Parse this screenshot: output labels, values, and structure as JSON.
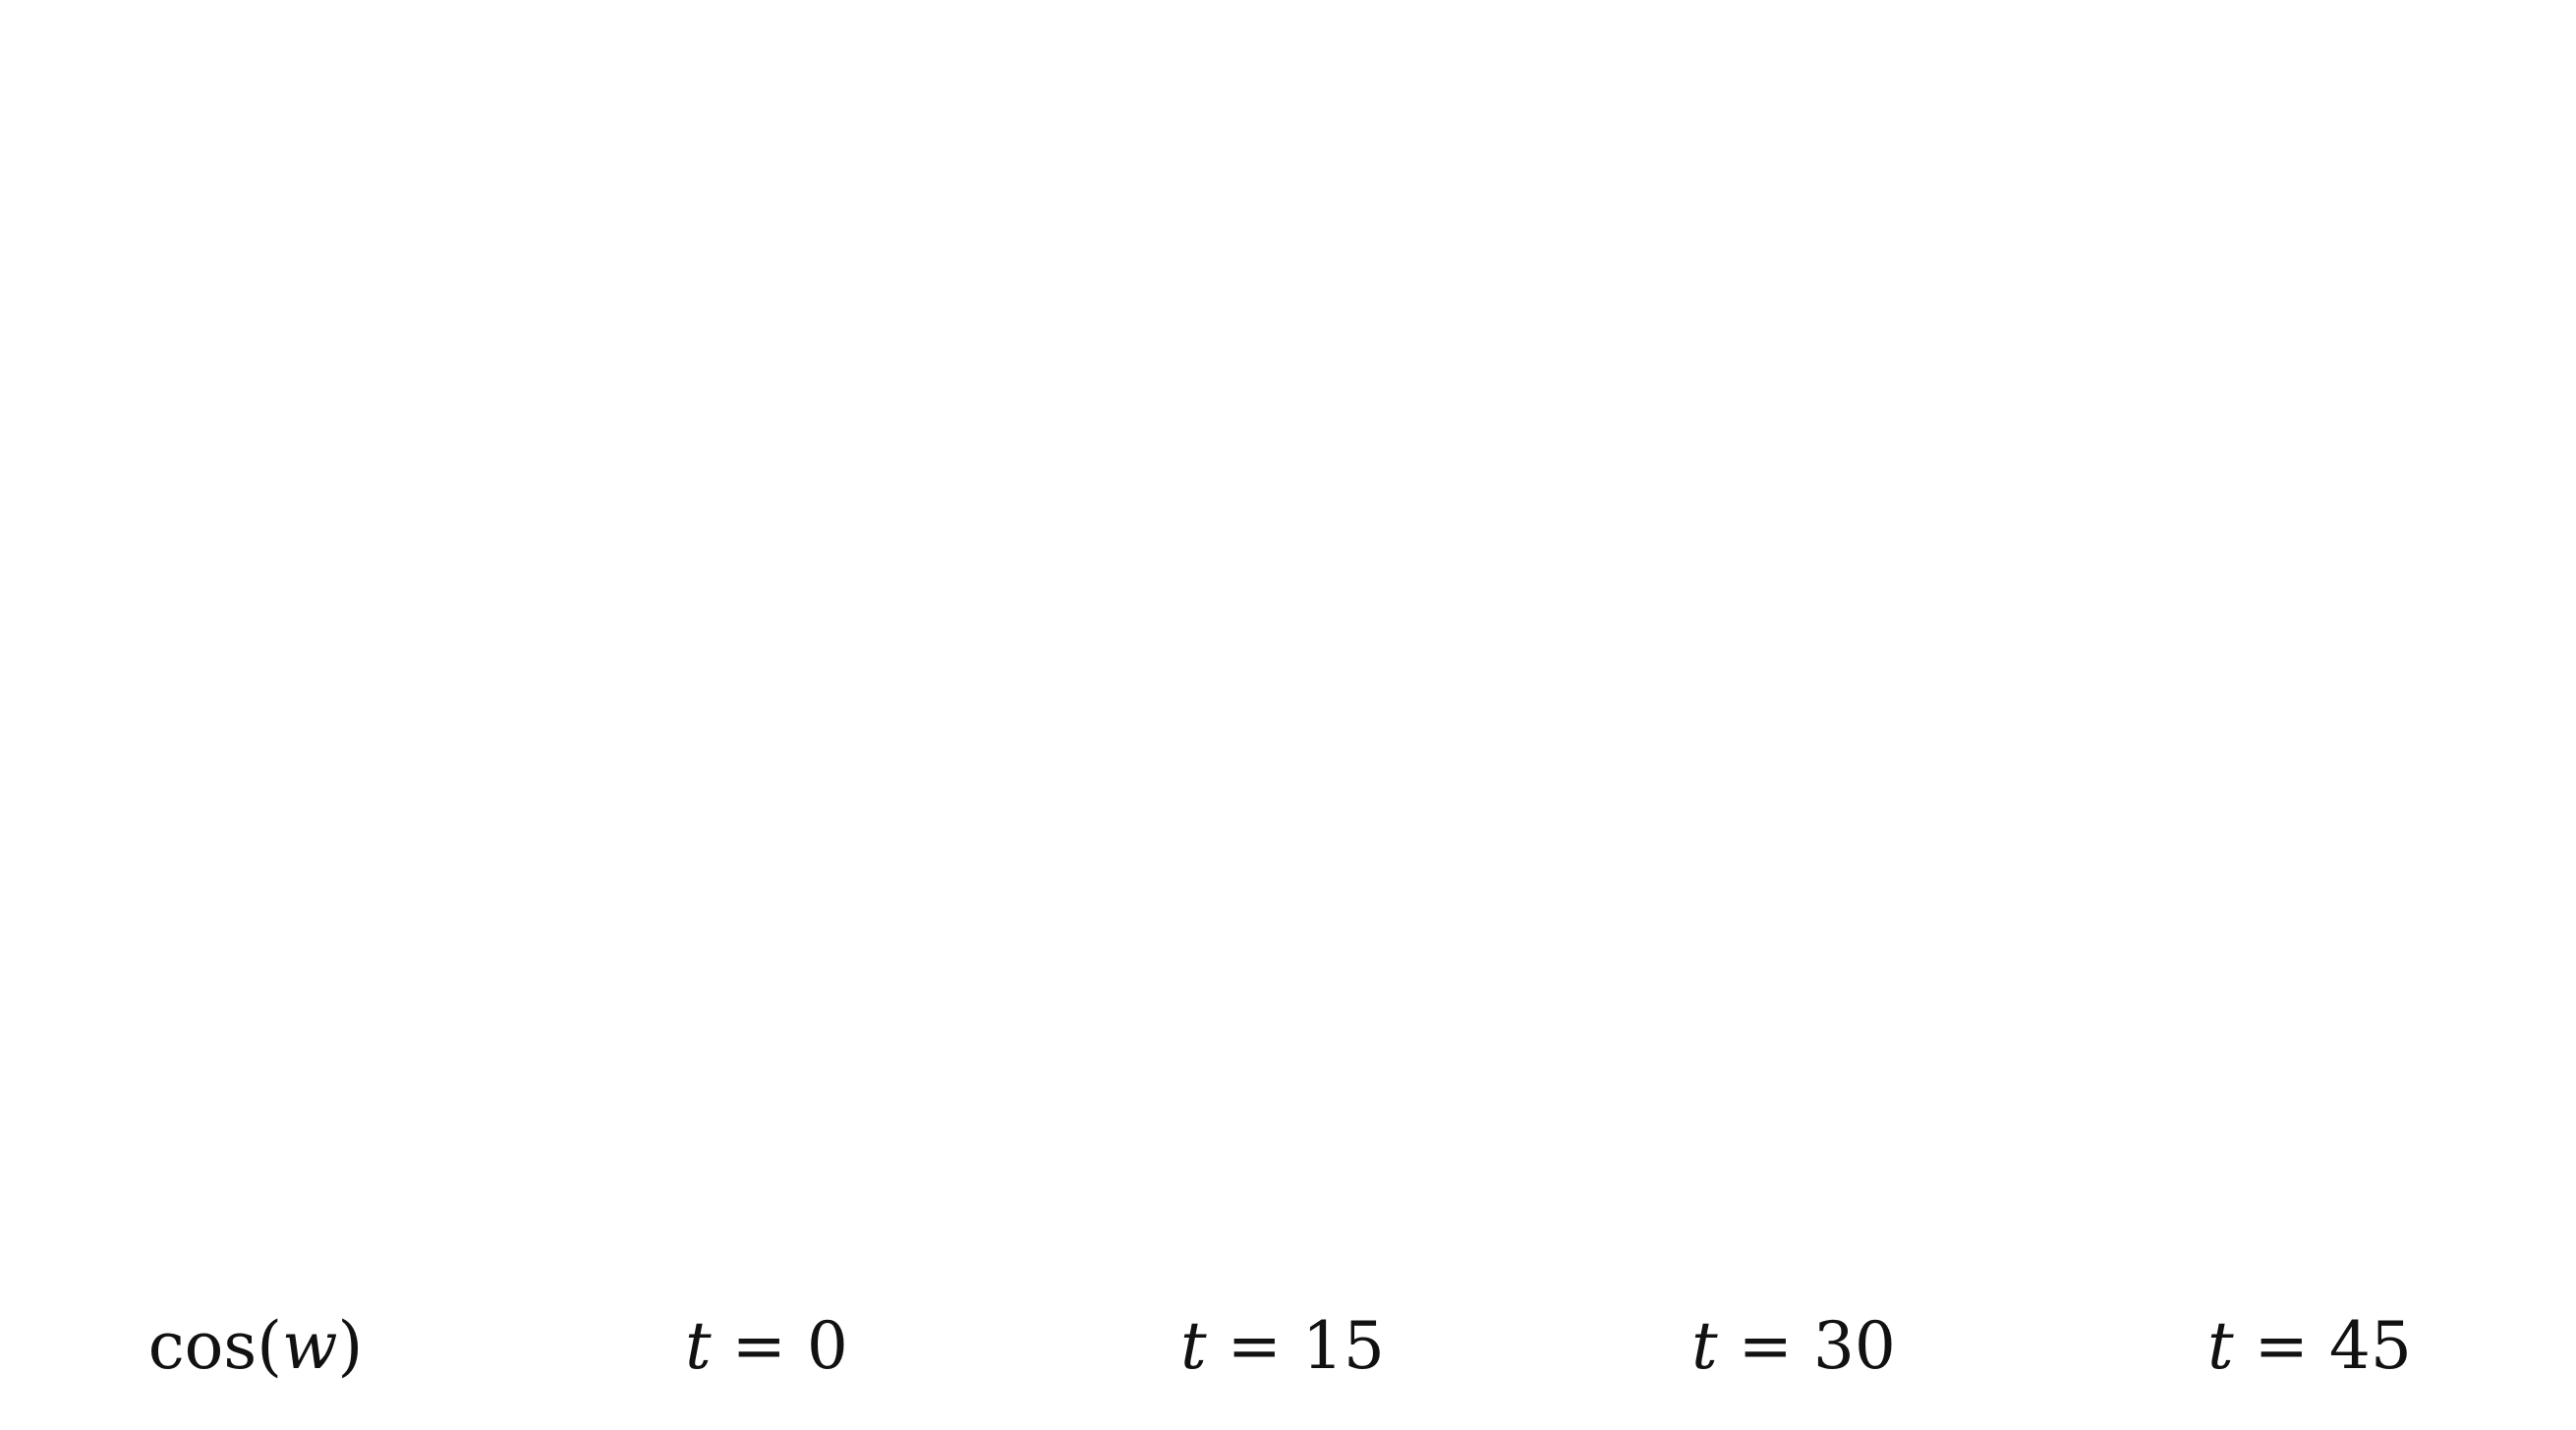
{
  "figure": {
    "colors": {
      "blob_base": "#2a2373",
      "blob_dark": "#1a1450",
      "hot": "#f2d31c",
      "warm": "#c8a52a",
      "cool": "#2bb3d6",
      "highlight": "#e8f2ff"
    },
    "reference": {
      "label_fn": "cos(",
      "label_var": "w",
      "label_close": ")",
      "pattern": "stripes"
    },
    "columns": [
      {
        "var": "t",
        "op": " = ",
        "value": "0",
        "heat": 0
      },
      {
        "var": "t",
        "op": " = ",
        "value": "15",
        "heat": 1
      },
      {
        "var": "t",
        "op": " = ",
        "value": "30",
        "heat": 2
      },
      {
        "var": "t",
        "op": " = ",
        "value": "45",
        "heat": 3
      }
    ],
    "rows": 2
  }
}
